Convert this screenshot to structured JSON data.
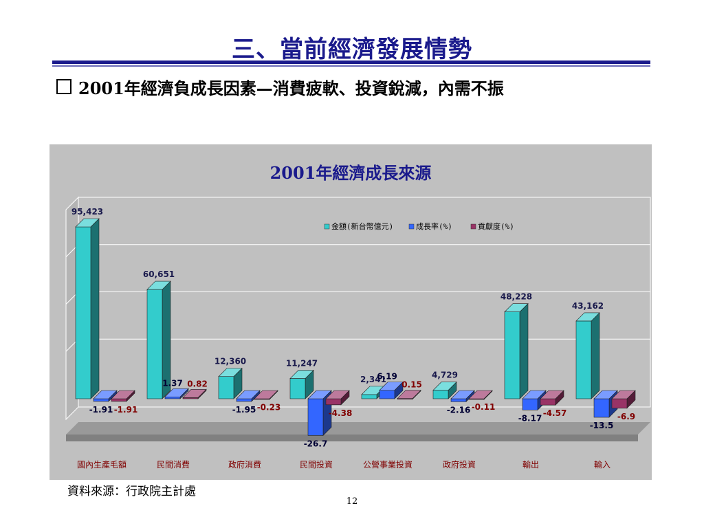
{
  "slide": {
    "title": "三、當前經濟發展情勢",
    "headline_main": "2001年經濟負成長因素—",
    "headline_sub": "消費疲軟、投資銳減，內需不振",
    "source": "資料來源：行政院主計處",
    "page_number": "12"
  },
  "chart_data": {
    "type": "bar",
    "title": "2001年經濟成長來源",
    "categories": [
      "國內生產毛額",
      "民間消費",
      "政府消費",
      "民間投資",
      "公營事業投資",
      "政府投資",
      "輸出",
      "輸入"
    ],
    "series": [
      {
        "name": "金額(新台幣億元)",
        "color": "#33cccc",
        "values": [
          95423,
          60651,
          12360,
          11247,
          2341,
          4729,
          48228,
          43162
        ],
        "labels": [
          "95,423",
          "60,651",
          "12,360",
          "11,247",
          "2,341",
          "4,729",
          "48,228",
          "43,162"
        ]
      },
      {
        "name": "成長率(%)",
        "color": "#3366ff",
        "values": [
          -1.91,
          1.37,
          -1.95,
          -26.7,
          6.19,
          -2.16,
          -8.17,
          -13.5
        ],
        "labels": [
          "-1.91",
          "1.37",
          "-1.95",
          "-26.7",
          "6.19",
          "-2.16",
          "-8.17",
          "-13.5"
        ]
      },
      {
        "name": "貢獻度(%)",
        "color": "#993366",
        "values": [
          -1.91,
          0.82,
          -0.23,
          -4.38,
          0.15,
          -0.11,
          -4.57,
          -6.9
        ],
        "labels": [
          "-1.91",
          "0.82",
          "-0.23",
          "-4.38",
          "0.15",
          "-0.11",
          "-4.57",
          "-6.9"
        ]
      }
    ],
    "legend_position": "top-right",
    "grid": true,
    "style": "3d"
  }
}
